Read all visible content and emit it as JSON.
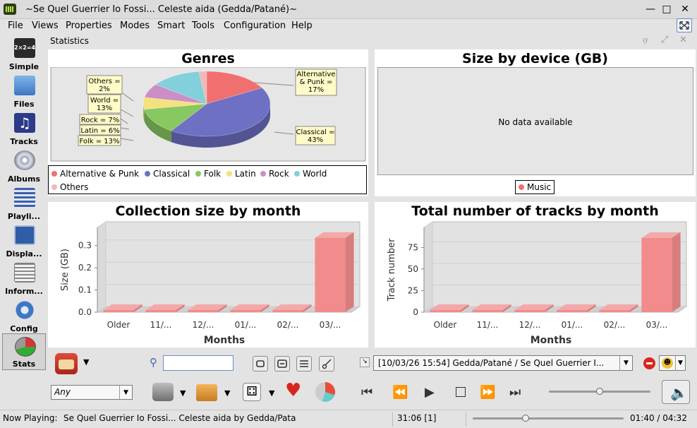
{
  "window": {
    "title": "~Se Quel Guerrier Io Fossi... Celeste aida (Gedda/Patané)~"
  },
  "menu": [
    "File",
    "Views",
    "Properties",
    "Modes",
    "Smart",
    "Tools",
    "Configuration",
    "Help"
  ],
  "sidebar": {
    "items": [
      {
        "label": "Simple",
        "icon": "simple-view-icon"
      },
      {
        "label": "Files",
        "icon": "folder-icon"
      },
      {
        "label": "Tracks",
        "icon": "music-note-icon"
      },
      {
        "label": "Albums",
        "icon": "cd-icon"
      },
      {
        "label": "Playli...",
        "icon": "playlist-icon"
      },
      {
        "label": "Displa...",
        "icon": "display-icon"
      },
      {
        "label": "Inform...",
        "icon": "newspaper-icon"
      },
      {
        "label": "Config",
        "icon": "gear-icon"
      },
      {
        "label": "Stats",
        "icon": "pie-chart-icon"
      }
    ],
    "active": 8
  },
  "stats": {
    "header": "Statistics"
  },
  "charts": {
    "genres": {
      "title": "Genres",
      "callouts": {
        "alt": [
          "Alternative",
          "& Punk =",
          "17%"
        ],
        "classical": [
          "Classical =",
          "43%"
        ],
        "others": [
          "Others =",
          "2%"
        ],
        "world": [
          "World =",
          "13%"
        ],
        "rock": [
          "Rock = 7%"
        ],
        "latin": [
          "Latin = 6%"
        ],
        "folk": [
          "Folk = 13%"
        ]
      },
      "legend": [
        "Alternative & Punk",
        "Classical",
        "Folk",
        "Latin",
        "Rock",
        "World",
        "Others"
      ]
    },
    "device": {
      "title": "Size by device (GB)",
      "empty_text": "No data available",
      "legend": [
        "Music"
      ]
    },
    "collection": {
      "title": "Collection size by month",
      "xlabel": "Months",
      "ylabel": "Size (GB)"
    },
    "tracks": {
      "title": "Total number of tracks by month",
      "xlabel": "Months",
      "ylabel": "Track number"
    }
  },
  "chart_data": [
    {
      "type": "pie",
      "title": "Genres",
      "categories": [
        "Alternative & Punk",
        "Classical",
        "Folk",
        "Latin",
        "Rock",
        "World",
        "Others"
      ],
      "values": [
        17,
        43,
        13,
        6,
        7,
        13,
        2
      ],
      "colors": [
        "#f07070",
        "#6e70c4",
        "#88c860",
        "#f4e27e",
        "#cc8ec6",
        "#82d0dc",
        "#f4b6b6"
      ],
      "legend": "bottom"
    },
    {
      "type": "bar",
      "title": "Size by device (GB)",
      "categories": [],
      "values": [],
      "series": [
        {
          "name": "Music",
          "values": []
        }
      ],
      "legend": "bottom"
    },
    {
      "type": "bar",
      "title": "Collection size by month",
      "xlabel": "Months",
      "ylabel": "Size (GB)",
      "categories": [
        "Older",
        "11/...",
        "12/...",
        "01/...",
        "02/...",
        "03/..."
      ],
      "values": [
        0,
        0,
        0,
        0,
        0,
        0.335
      ],
      "ylim": [
        0,
        0.35
      ],
      "yticks": [
        "0.0",
        "0.1",
        "0.2",
        "0.3"
      ],
      "grid": true
    },
    {
      "type": "bar",
      "title": "Total number of tracks by month",
      "xlabel": "Months",
      "ylabel": "Track number",
      "categories": [
        "Older",
        "11/...",
        "12/...",
        "01/...",
        "02/...",
        "03/..."
      ],
      "values": [
        0,
        0,
        0,
        0,
        0,
        86
      ],
      "ylim": [
        0,
        90
      ],
      "yticks": [
        "0",
        "25",
        "50",
        "75"
      ],
      "grid": true
    }
  ],
  "search": {
    "value": ""
  },
  "ambience": {
    "selected": "Any"
  },
  "history": {
    "selected": "[10/03/26 15:54] Gedda/Patané / Se Quel Guerrier I..."
  },
  "volume": {
    "level": 0.5
  },
  "position": {
    "fraction": 0.35
  },
  "status": {
    "now_playing_label": "Now Playing:",
    "now_playing": "Se Quel Guerrier Io Fossi... Celeste aida by Gedda/Pata",
    "queue": "31:06 [1]",
    "time": "01:40 / 04:32"
  }
}
